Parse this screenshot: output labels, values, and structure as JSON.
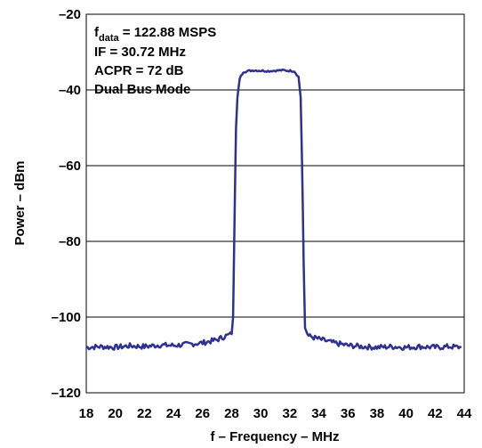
{
  "chart_data": {
    "type": "line",
    "title": "",
    "xlabel": "f – Frequency – MHz",
    "ylabel": "Power – dBm",
    "xlim": [
      18,
      44
    ],
    "ylim": [
      -120,
      -20
    ],
    "x_ticks": [
      "18",
      "20",
      "22",
      "24",
      "26",
      "28",
      "30",
      "32",
      "34",
      "36",
      "38",
      "40",
      "42",
      "44"
    ],
    "y_ticks": [
      "–20",
      "–40",
      "–60",
      "–80",
      "–100",
      "–120"
    ],
    "grid": "horizontal",
    "line_color": "#2e3192",
    "annotations": {
      "line1_main": "f",
      "line1_sub": "data",
      "line1_rest": " = 122.88 MSPS",
      "line2": "IF = 30.72 MHz",
      "line3": "ACPR = 72 dB",
      "line4": "Dual Bus Mode"
    },
    "series": [
      {
        "values": [
          [
            18.0,
            -108.0
          ],
          [
            19.0,
            -107.8
          ],
          [
            20.0,
            -108.0
          ],
          [
            21.0,
            -107.6
          ],
          [
            22.0,
            -107.8
          ],
          [
            23.0,
            -107.4
          ],
          [
            24.0,
            -107.5
          ],
          [
            25.0,
            -107.2
          ],
          [
            26.0,
            -106.8
          ],
          [
            27.0,
            -106.0
          ],
          [
            27.6,
            -105.0
          ],
          [
            28.0,
            -104.5
          ],
          [
            28.1,
            -100.0
          ],
          [
            28.2,
            -75.0
          ],
          [
            28.3,
            -50.0
          ],
          [
            28.4,
            -42.0
          ],
          [
            28.55,
            -37.0
          ],
          [
            28.8,
            -35.2
          ],
          [
            29.5,
            -34.8
          ],
          [
            30.5,
            -35.0
          ],
          [
            31.5,
            -34.8
          ],
          [
            32.3,
            -35.0
          ],
          [
            32.6,
            -36.5
          ],
          [
            32.75,
            -42.0
          ],
          [
            32.85,
            -60.0
          ],
          [
            32.95,
            -85.0
          ],
          [
            33.05,
            -103.0
          ],
          [
            33.3,
            -105.0
          ],
          [
            34.0,
            -105.8
          ],
          [
            35.0,
            -106.8
          ],
          [
            36.0,
            -107.5
          ],
          [
            37.0,
            -107.8
          ],
          [
            38.0,
            -108.0
          ],
          [
            39.0,
            -107.8
          ],
          [
            40.0,
            -108.0
          ],
          [
            41.0,
            -107.8
          ],
          [
            42.0,
            -108.0
          ],
          [
            43.0,
            -107.8
          ],
          [
            43.8,
            -108.0
          ]
        ]
      }
    ]
  }
}
